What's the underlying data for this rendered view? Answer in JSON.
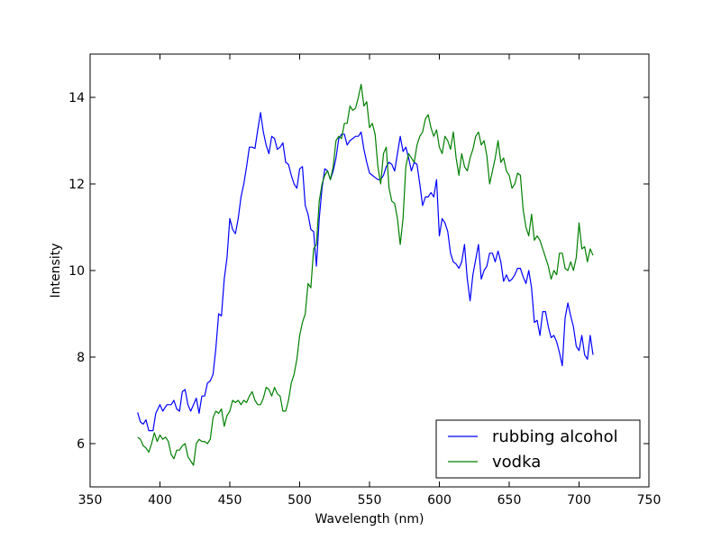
{
  "chart_data": {
    "type": "line",
    "title": "",
    "xlabel": "Wavelength (nm)",
    "ylabel": "Intensity",
    "xlim": [
      350,
      750
    ],
    "ylim": [
      5,
      15
    ],
    "xticks": [
      350,
      400,
      450,
      500,
      550,
      600,
      650,
      700,
      750
    ],
    "yticks": [
      6,
      8,
      10,
      12,
      14
    ],
    "grid": false,
    "legend": "lower-right",
    "series": [
      {
        "name": "rubbing alcohol",
        "color": "#0000ff",
        "points": [
          [
            384,
            6.72
          ],
          [
            386,
            6.5
          ],
          [
            388,
            6.45
          ],
          [
            390,
            6.55
          ],
          [
            392,
            6.3
          ],
          [
            395,
            6.3
          ],
          [
            397,
            6.7
          ],
          [
            400,
            6.9
          ],
          [
            402,
            6.75
          ],
          [
            405,
            6.9
          ],
          [
            408,
            6.9
          ],
          [
            410,
            7.0
          ],
          [
            412,
            6.8
          ],
          [
            414,
            6.75
          ],
          [
            416,
            7.2
          ],
          [
            418,
            7.25
          ],
          [
            420,
            6.9
          ],
          [
            422,
            6.75
          ],
          [
            424,
            6.9
          ],
          [
            426,
            7.05
          ],
          [
            428,
            6.7
          ],
          [
            430,
            7.1
          ],
          [
            432,
            7.1
          ],
          [
            434,
            7.4
          ],
          [
            436,
            7.45
          ],
          [
            438,
            7.6
          ],
          [
            440,
            8.2
          ],
          [
            442,
            9.0
          ],
          [
            444,
            8.95
          ],
          [
            446,
            9.8
          ],
          [
            448,
            10.3
          ],
          [
            450,
            11.2
          ],
          [
            452,
            10.95
          ],
          [
            454,
            10.85
          ],
          [
            456,
            11.2
          ],
          [
            458,
            11.7
          ],
          [
            460,
            12.0
          ],
          [
            462,
            12.4
          ],
          [
            464,
            12.85
          ],
          [
            466,
            12.85
          ],
          [
            468,
            12.82
          ],
          [
            470,
            13.25
          ],
          [
            472,
            13.65
          ],
          [
            474,
            13.2
          ],
          [
            476,
            12.9
          ],
          [
            478,
            12.7
          ],
          [
            480,
            13.1
          ],
          [
            482,
            13.05
          ],
          [
            484,
            12.8
          ],
          [
            486,
            12.85
          ],
          [
            488,
            12.95
          ],
          [
            490,
            12.5
          ],
          [
            492,
            12.45
          ],
          [
            494,
            12.2
          ],
          [
            496,
            12.0
          ],
          [
            498,
            11.9
          ],
          [
            500,
            12.35
          ],
          [
            502,
            12.4
          ],
          [
            504,
            11.5
          ],
          [
            506,
            11.3
          ],
          [
            508,
            10.95
          ],
          [
            510,
            10.9
          ],
          [
            512,
            10.1
          ],
          [
            514,
            11.2
          ],
          [
            516,
            11.9
          ],
          [
            518,
            12.35
          ],
          [
            520,
            12.3
          ],
          [
            522,
            12.1
          ],
          [
            524,
            12.3
          ],
          [
            526,
            12.6
          ],
          [
            528,
            13.05
          ],
          [
            530,
            13.15
          ],
          [
            532,
            13.15
          ],
          [
            534,
            12.9
          ],
          [
            536,
            13.0
          ],
          [
            538,
            13.05
          ],
          [
            540,
            13.1
          ],
          [
            542,
            13.1
          ],
          [
            544,
            13.2
          ],
          [
            546,
            12.8
          ],
          [
            548,
            12.5
          ],
          [
            550,
            12.25
          ],
          [
            552,
            12.2
          ],
          [
            554,
            12.15
          ],
          [
            556,
            12.1
          ],
          [
            558,
            12.1
          ],
          [
            560,
            12.2
          ],
          [
            562,
            12.4
          ],
          [
            564,
            12.5
          ],
          [
            566,
            12.45
          ],
          [
            568,
            12.3
          ],
          [
            570,
            12.7
          ],
          [
            572,
            13.1
          ],
          [
            574,
            12.75
          ],
          [
            576,
            12.85
          ],
          [
            578,
            12.6
          ],
          [
            580,
            12.3
          ],
          [
            582,
            12.5
          ],
          [
            584,
            12.45
          ],
          [
            586,
            12.0
          ],
          [
            588,
            11.5
          ],
          [
            590,
            11.7
          ],
          [
            592,
            11.7
          ],
          [
            594,
            11.8
          ],
          [
            596,
            11.7
          ],
          [
            598,
            12.1
          ],
          [
            600,
            10.8
          ],
          [
            602,
            11.2
          ],
          [
            604,
            11.1
          ],
          [
            606,
            10.9
          ],
          [
            608,
            10.4
          ],
          [
            610,
            10.2
          ],
          [
            612,
            10.15
          ],
          [
            614,
            10.05
          ],
          [
            616,
            10.2
          ],
          [
            618,
            10.6
          ],
          [
            620,
            9.8
          ],
          [
            622,
            9.3
          ],
          [
            624,
            9.9
          ],
          [
            626,
            10.25
          ],
          [
            628,
            10.6
          ],
          [
            630,
            9.8
          ],
          [
            632,
            10.0
          ],
          [
            634,
            10.1
          ],
          [
            636,
            10.4
          ],
          [
            638,
            10.4
          ],
          [
            640,
            10.2
          ],
          [
            642,
            10.45
          ],
          [
            644,
            10.2
          ],
          [
            646,
            9.75
          ],
          [
            648,
            9.9
          ],
          [
            650,
            9.75
          ],
          [
            652,
            9.8
          ],
          [
            654,
            9.9
          ],
          [
            656,
            10.05
          ],
          [
            658,
            10.05
          ],
          [
            660,
            9.85
          ],
          [
            662,
            9.7
          ],
          [
            664,
            10.0
          ],
          [
            666,
            9.6
          ],
          [
            668,
            8.8
          ],
          [
            670,
            8.85
          ],
          [
            672,
            8.5
          ],
          [
            674,
            9.05
          ],
          [
            676,
            9.05
          ],
          [
            678,
            8.7
          ],
          [
            680,
            8.45
          ],
          [
            682,
            8.5
          ],
          [
            684,
            8.35
          ],
          [
            686,
            8.1
          ],
          [
            688,
            7.8
          ],
          [
            690,
            8.9
          ],
          [
            692,
            9.25
          ],
          [
            694,
            8.95
          ],
          [
            696,
            8.7
          ],
          [
            698,
            8.25
          ],
          [
            700,
            8.15
          ],
          [
            702,
            8.5
          ],
          [
            704,
            8.05
          ],
          [
            706,
            7.95
          ],
          [
            708,
            8.5
          ],
          [
            710,
            8.05
          ]
        ]
      },
      {
        "name": "vodka",
        "color": "#008000",
        "points": [
          [
            384,
            6.15
          ],
          [
            386,
            6.1
          ],
          [
            388,
            5.95
          ],
          [
            390,
            5.9
          ],
          [
            392,
            5.8
          ],
          [
            394,
            6.0
          ],
          [
            396,
            6.25
          ],
          [
            398,
            6.05
          ],
          [
            400,
            6.2
          ],
          [
            402,
            6.1
          ],
          [
            404,
            6.15
          ],
          [
            406,
            6.05
          ],
          [
            408,
            5.75
          ],
          [
            410,
            5.65
          ],
          [
            412,
            5.85
          ],
          [
            414,
            5.85
          ],
          [
            416,
            5.95
          ],
          [
            418,
            6.0
          ],
          [
            420,
            5.7
          ],
          [
            422,
            5.6
          ],
          [
            424,
            5.5
          ],
          [
            426,
            6.0
          ],
          [
            428,
            6.1
          ],
          [
            430,
            6.05
          ],
          [
            432,
            6.05
          ],
          [
            434,
            6.0
          ],
          [
            436,
            6.1
          ],
          [
            438,
            6.6
          ],
          [
            440,
            6.75
          ],
          [
            442,
            6.7
          ],
          [
            444,
            6.8
          ],
          [
            446,
            6.4
          ],
          [
            448,
            6.65
          ],
          [
            450,
            6.75
          ],
          [
            452,
            7.0
          ],
          [
            454,
            6.95
          ],
          [
            456,
            7.0
          ],
          [
            458,
            6.9
          ],
          [
            460,
            7.0
          ],
          [
            462,
            6.95
          ],
          [
            464,
            7.1
          ],
          [
            466,
            7.2
          ],
          [
            468,
            7.0
          ],
          [
            470,
            6.9
          ],
          [
            472,
            6.9
          ],
          [
            474,
            7.05
          ],
          [
            476,
            7.3
          ],
          [
            478,
            7.25
          ],
          [
            480,
            7.1
          ],
          [
            482,
            7.3
          ],
          [
            484,
            7.15
          ],
          [
            486,
            7.1
          ],
          [
            488,
            6.75
          ],
          [
            490,
            6.75
          ],
          [
            492,
            7.0
          ],
          [
            494,
            7.4
          ],
          [
            496,
            7.6
          ],
          [
            498,
            7.95
          ],
          [
            500,
            8.5
          ],
          [
            502,
            8.8
          ],
          [
            504,
            9.0
          ],
          [
            506,
            9.7
          ],
          [
            508,
            9.6
          ],
          [
            510,
            10.5
          ],
          [
            512,
            10.6
          ],
          [
            514,
            11.6
          ],
          [
            516,
            12.0
          ],
          [
            518,
            12.2
          ],
          [
            520,
            12.3
          ],
          [
            522,
            12.1
          ],
          [
            524,
            12.4
          ],
          [
            526,
            13.0
          ],
          [
            528,
            13.1
          ],
          [
            530,
            13.05
          ],
          [
            532,
            13.4
          ],
          [
            534,
            13.4
          ],
          [
            536,
            13.8
          ],
          [
            538,
            13.7
          ],
          [
            540,
            13.75
          ],
          [
            542,
            14.0
          ],
          [
            544,
            14.3
          ],
          [
            546,
            13.8
          ],
          [
            548,
            13.9
          ],
          [
            550,
            13.3
          ],
          [
            552,
            13.4
          ],
          [
            554,
            13.15
          ],
          [
            556,
            12.4
          ],
          [
            558,
            12.0
          ],
          [
            560,
            12.7
          ],
          [
            562,
            12.85
          ],
          [
            564,
            11.9
          ],
          [
            566,
            11.6
          ],
          [
            568,
            11.55
          ],
          [
            570,
            11.2
          ],
          [
            572,
            10.6
          ],
          [
            574,
            11.2
          ],
          [
            576,
            12.4
          ],
          [
            578,
            12.7
          ],
          [
            580,
            12.6
          ],
          [
            582,
            12.5
          ],
          [
            584,
            12.9
          ],
          [
            586,
            13.1
          ],
          [
            588,
            13.2
          ],
          [
            590,
            13.5
          ],
          [
            592,
            13.6
          ],
          [
            594,
            13.3
          ],
          [
            596,
            13.1
          ],
          [
            598,
            13.25
          ],
          [
            600,
            12.85
          ],
          [
            602,
            12.7
          ],
          [
            604,
            13.1
          ],
          [
            606,
            13.0
          ],
          [
            608,
            12.8
          ],
          [
            610,
            13.2
          ],
          [
            612,
            12.6
          ],
          [
            614,
            12.2
          ],
          [
            616,
            12.7
          ],
          [
            618,
            12.4
          ],
          [
            620,
            12.3
          ],
          [
            622,
            12.6
          ],
          [
            624,
            12.8
          ],
          [
            626,
            13.1
          ],
          [
            628,
            13.2
          ],
          [
            630,
            12.9
          ],
          [
            632,
            13.0
          ],
          [
            634,
            12.65
          ],
          [
            636,
            12.0
          ],
          [
            638,
            12.3
          ],
          [
            640,
            12.6
          ],
          [
            642,
            13.0
          ],
          [
            644,
            12.5
          ],
          [
            646,
            12.6
          ],
          [
            648,
            12.3
          ],
          [
            650,
            12.2
          ],
          [
            652,
            11.9
          ],
          [
            654,
            12.0
          ],
          [
            656,
            12.25
          ],
          [
            658,
            12.2
          ],
          [
            660,
            11.4
          ],
          [
            662,
            11.0
          ],
          [
            664,
            10.8
          ],
          [
            666,
            11.3
          ],
          [
            668,
            10.7
          ],
          [
            670,
            10.8
          ],
          [
            672,
            10.7
          ],
          [
            674,
            10.5
          ],
          [
            676,
            10.3
          ],
          [
            678,
            10.1
          ],
          [
            680,
            9.8
          ],
          [
            682,
            10.0
          ],
          [
            684,
            9.9
          ],
          [
            686,
            10.4
          ],
          [
            688,
            10.4
          ],
          [
            690,
            10.05
          ],
          [
            692,
            10.0
          ],
          [
            694,
            10.2
          ],
          [
            696,
            10.0
          ],
          [
            698,
            10.3
          ],
          [
            700,
            11.1
          ],
          [
            702,
            10.5
          ],
          [
            704,
            10.55
          ],
          [
            706,
            10.2
          ],
          [
            708,
            10.5
          ],
          [
            710,
            10.35
          ]
        ]
      }
    ]
  }
}
